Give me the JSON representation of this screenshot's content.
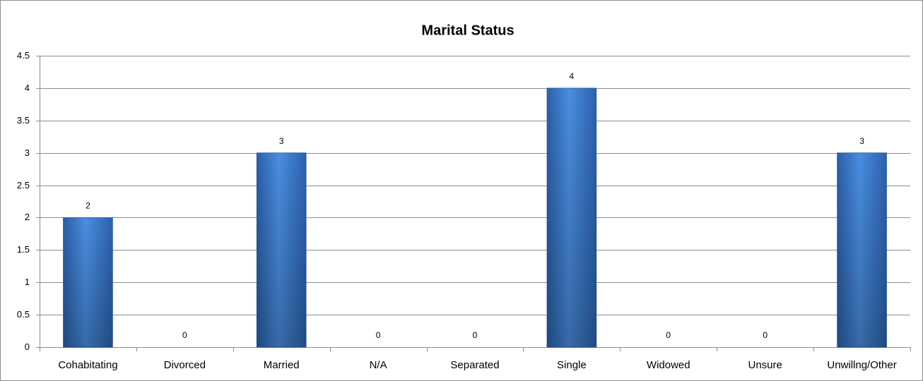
{
  "chart_data": {
    "type": "bar",
    "title": "Marital Status",
    "categories": [
      "Cohabitating",
      "Divorced",
      "Married",
      "N/A",
      "Separated",
      "Single",
      "Widowed",
      "Unsure",
      "Unwillng/Other"
    ],
    "values": [
      2,
      0,
      3,
      0,
      0,
      4,
      0,
      0,
      3
    ],
    "color": "#3a78c9",
    "ylim": [
      0,
      4.5
    ],
    "yticks": [
      0,
      0.5,
      1,
      1.5,
      2,
      2.5,
      3,
      3.5,
      4,
      4.5
    ],
    "grid": true
  }
}
